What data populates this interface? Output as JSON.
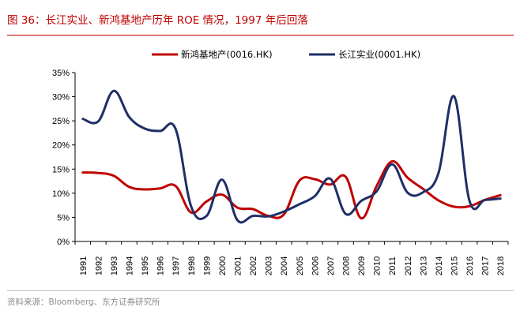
{
  "figure": {
    "title": "图 36：长江实业、新鸿基地产历年 ROE 情况，1997 年后回落",
    "source": "资料来源：Bloomberg、东方证券研究所"
  },
  "colors": {
    "title_red": "#c00000",
    "series_red": "#c00000",
    "series_navy": "#1f2f66",
    "axis": "#000000"
  },
  "chart_data": {
    "type": "line",
    "title": "",
    "xlabel": "",
    "ylabel": "",
    "grid": false,
    "legend_position": "top",
    "ylim": [
      0,
      35
    ],
    "y_tick_values": [
      0,
      5,
      10,
      15,
      20,
      25,
      30,
      35
    ],
    "y_tick_labels": [
      "0%",
      "5%",
      "10%",
      "15%",
      "20%",
      "25%",
      "30%",
      "35%"
    ],
    "categories": [
      "1991",
      "1992",
      "1993",
      "1994",
      "1995",
      "1996",
      "1997",
      "1998",
      "1999",
      "2000",
      "2001",
      "2002",
      "2003",
      "2004",
      "2005",
      "2006",
      "2007",
      "2008",
      "2009",
      "2010",
      "2011",
      "2012",
      "2013",
      "2014",
      "2015",
      "2016",
      "2017",
      "2018"
    ],
    "series": [
      {
        "name": "新鸿基地产(0016.HK)",
        "color": "#c00000",
        "values": [
          14.3,
          14.2,
          13.6,
          11.3,
          10.8,
          11.0,
          11.5,
          6.0,
          8.3,
          9.7,
          7.0,
          6.7,
          5.3,
          5.6,
          12.6,
          12.9,
          11.8,
          13.4,
          4.8,
          11.5,
          16.6,
          13.2,
          10.9,
          8.5,
          7.2,
          7.3,
          8.6,
          9.6
        ]
      },
      {
        "name": "长江实业(0001.HK)",
        "color": "#1f2f66",
        "values": [
          25.4,
          24.9,
          31.2,
          25.8,
          23.4,
          22.9,
          23.3,
          7.3,
          5.3,
          12.8,
          4.4,
          5.3,
          5.2,
          6.2,
          7.7,
          9.4,
          13.0,
          5.7,
          8.4,
          10.4,
          16.0,
          10.1,
          10.2,
          14.2,
          30.1,
          8.4,
          8.6,
          8.9
        ]
      }
    ]
  }
}
